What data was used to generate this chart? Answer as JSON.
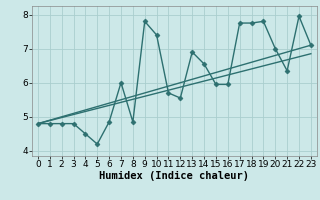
{
  "line1_x": [
    0,
    1,
    2,
    3,
    4,
    5,
    6,
    7,
    8,
    9,
    10,
    11,
    12,
    13,
    14,
    15,
    16,
    17,
    18,
    19,
    20,
    21,
    22,
    23
  ],
  "line1_y": [
    4.8,
    4.8,
    4.8,
    4.8,
    4.5,
    4.2,
    4.85,
    6.0,
    4.85,
    7.8,
    7.4,
    5.7,
    5.55,
    6.9,
    6.55,
    5.95,
    5.95,
    7.75,
    7.75,
    7.8,
    7.0,
    6.35,
    7.95,
    7.1
  ],
  "line2_x": [
    0,
    23
  ],
  "line2_y": [
    4.8,
    7.1
  ],
  "line3_x": [
    0,
    23
  ],
  "line3_y": [
    4.8,
    6.85
  ],
  "line_color": "#2d7070",
  "bg_color": "#cce8e8",
  "grid_color": "#aacece",
  "xlabel": "Humidex (Indice chaleur)",
  "xlim": [
    -0.5,
    23.5
  ],
  "ylim": [
    3.85,
    8.25
  ],
  "yticks": [
    4,
    5,
    6,
    7,
    8
  ],
  "xticks": [
    0,
    1,
    2,
    3,
    4,
    5,
    6,
    7,
    8,
    9,
    10,
    11,
    12,
    13,
    14,
    15,
    16,
    17,
    18,
    19,
    20,
    21,
    22,
    23
  ],
  "marker": "D",
  "markersize": 2.5,
  "linewidth": 1.0,
  "tick_fontsize": 6.5,
  "xlabel_fontsize": 7.5
}
